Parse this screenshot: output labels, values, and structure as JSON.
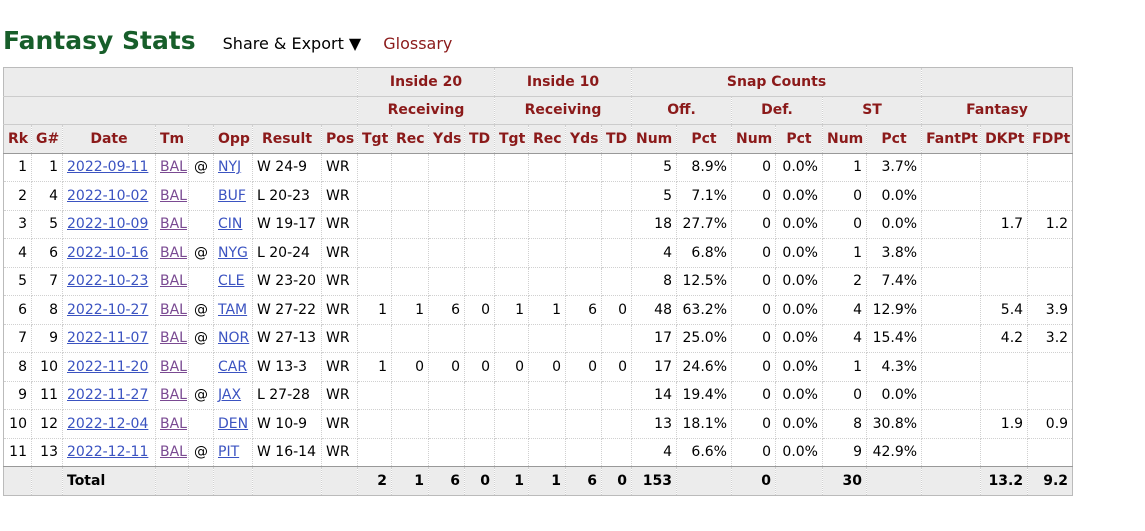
{
  "header": {
    "title": "Fantasy Stats",
    "share": "Share & Export ▼",
    "glossary": "Glossary"
  },
  "table": {
    "group_row1": [
      "Inside 20",
      "Inside 10",
      "Snap Counts"
    ],
    "group_row2": [
      "Receiving",
      "Receiving",
      "Off.",
      "Def.",
      "ST",
      "Fantasy"
    ],
    "columns": [
      "Rk",
      "G#",
      "Date",
      "Tm",
      null,
      "Opp",
      "Result",
      "Pos",
      "Tgt",
      "Rec",
      "Yds",
      "TD",
      "Tgt",
      "Rec",
      "Yds",
      "TD",
      "Num",
      "Pct",
      "Num",
      "Pct",
      "Num",
      "Pct",
      "FantPt",
      "DKPt",
      "FDPt"
    ],
    "rows": [
      [
        "1",
        "1",
        "2022-09-11",
        "BAL",
        "@",
        "NYJ",
        "W 24-9",
        "WR",
        null,
        null,
        null,
        null,
        null,
        null,
        null,
        null,
        "5",
        "8.9%",
        "0",
        "0.0%",
        "1",
        "3.7%",
        null,
        null,
        null
      ],
      [
        "2",
        "4",
        "2022-10-02",
        "BAL",
        null,
        "BUF",
        "L 20-23",
        "WR",
        null,
        null,
        null,
        null,
        null,
        null,
        null,
        null,
        "5",
        "7.1%",
        "0",
        "0.0%",
        "0",
        "0.0%",
        null,
        null,
        null
      ],
      [
        "3",
        "5",
        "2022-10-09",
        "BAL",
        null,
        "CIN",
        "W 19-17",
        "WR",
        null,
        null,
        null,
        null,
        null,
        null,
        null,
        null,
        "18",
        "27.7%",
        "0",
        "0.0%",
        "0",
        "0.0%",
        null,
        "1.7",
        "1.2"
      ],
      [
        "4",
        "6",
        "2022-10-16",
        "BAL",
        "@",
        "NYG",
        "L 20-24",
        "WR",
        null,
        null,
        null,
        null,
        null,
        null,
        null,
        null,
        "4",
        "6.8%",
        "0",
        "0.0%",
        "1",
        "3.8%",
        null,
        null,
        null
      ],
      [
        "5",
        "7",
        "2022-10-23",
        "BAL",
        null,
        "CLE",
        "W 23-20",
        "WR",
        null,
        null,
        null,
        null,
        null,
        null,
        null,
        null,
        "8",
        "12.5%",
        "0",
        "0.0%",
        "2",
        "7.4%",
        null,
        null,
        null
      ],
      [
        "6",
        "8",
        "2022-10-27",
        "BAL",
        "@",
        "TAM",
        "W 27-22",
        "WR",
        "1",
        "1",
        "6",
        "0",
        "1",
        "1",
        "6",
        "0",
        "48",
        "63.2%",
        "0",
        "0.0%",
        "4",
        "12.9%",
        null,
        "5.4",
        "3.9"
      ],
      [
        "7",
        "9",
        "2022-11-07",
        "BAL",
        "@",
        "NOR",
        "W 27-13",
        "WR",
        null,
        null,
        null,
        null,
        null,
        null,
        null,
        null,
        "17",
        "25.0%",
        "0",
        "0.0%",
        "4",
        "15.4%",
        null,
        "4.2",
        "3.2"
      ],
      [
        "8",
        "10",
        "2022-11-20",
        "BAL",
        null,
        "CAR",
        "W 13-3",
        "WR",
        "1",
        "0",
        "0",
        "0",
        "0",
        "0",
        "0",
        "0",
        "17",
        "24.6%",
        "0",
        "0.0%",
        "1",
        "4.3%",
        null,
        null,
        null
      ],
      [
        "9",
        "11",
        "2022-11-27",
        "BAL",
        "@",
        "JAX",
        "L 27-28",
        "WR",
        null,
        null,
        null,
        null,
        null,
        null,
        null,
        null,
        "14",
        "19.4%",
        "0",
        "0.0%",
        "0",
        "0.0%",
        null,
        null,
        null
      ],
      [
        "10",
        "12",
        "2022-12-04",
        "BAL",
        null,
        "DEN",
        "W 10-9",
        "WR",
        null,
        null,
        null,
        null,
        null,
        null,
        null,
        null,
        "13",
        "18.1%",
        "0",
        "0.0%",
        "8",
        "30.8%",
        null,
        "1.9",
        "0.9"
      ],
      [
        "11",
        "13",
        "2022-12-11",
        "BAL",
        "@",
        "PIT",
        "W 16-14",
        "WR",
        null,
        null,
        null,
        null,
        null,
        null,
        null,
        null,
        "4",
        "6.6%",
        "0",
        "0.0%",
        "9",
        "42.9%",
        null,
        null,
        null
      ]
    ],
    "total": [
      null,
      null,
      "Total",
      null,
      null,
      null,
      null,
      null,
      "2",
      "1",
      "6",
      "0",
      "1",
      "1",
      "6",
      "0",
      "153",
      null,
      "0",
      null,
      "30",
      null,
      null,
      "13.2",
      "9.2"
    ]
  }
}
